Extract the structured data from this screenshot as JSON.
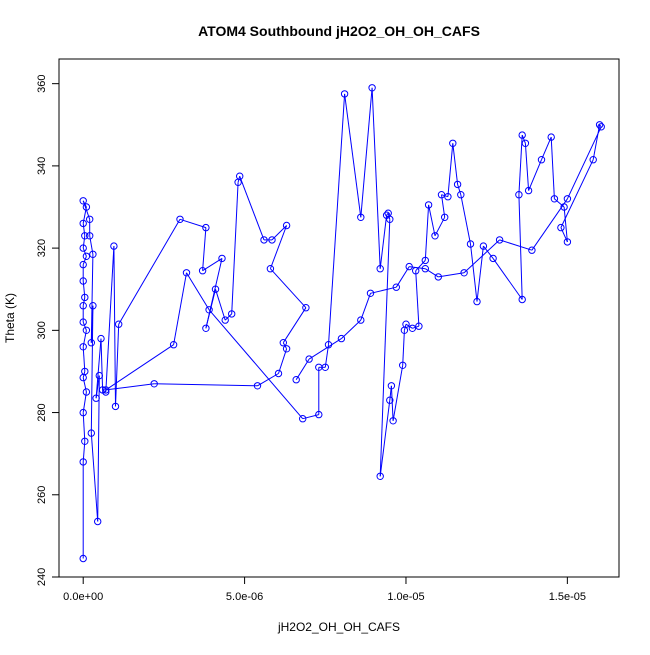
{
  "chart_data": {
    "type": "line",
    "title": "ATOM4 Southbound jH2O2_OH_OH_CAFS",
    "xlabel": "jH2O2_OH_OH_CAFS",
    "ylabel": "Theta (K)",
    "xlim": [
      -7.5e-07,
      1.66e-05
    ],
    "ylim": [
      240,
      366
    ],
    "xticks": [
      0,
      5e-06,
      1e-05,
      1.5e-05
    ],
    "xtick_labels": [
      "0.0e+00",
      "5.0e-06",
      "1.0e-05",
      "1.5e-05"
    ],
    "yticks": [
      240,
      260,
      280,
      300,
      320,
      340,
      360
    ],
    "ytick_labels": [
      "240",
      "260",
      "280",
      "300",
      "320",
      "340",
      "360"
    ],
    "grid": false,
    "legend": "none",
    "colors": {
      "series": "#0000ff",
      "axes": "#000000"
    },
    "markers": "open-circle",
    "series": [
      {
        "values": [
          [
            0.0,
            244.5
          ],
          [
            0.0,
            268.0
          ],
          [
            5e-08,
            273.0
          ],
          [
            0.0,
            280.0
          ],
          [
            1e-07,
            285.0
          ],
          [
            0.0,
            288.5
          ],
          [
            5e-08,
            290.0
          ],
          [
            0.0,
            296.0
          ],
          [
            1e-07,
            300.0
          ],
          [
            0.0,
            302.0
          ],
          [
            0.0,
            306.0
          ],
          [
            5e-08,
            308.0
          ],
          [
            0.0,
            312.0
          ],
          [
            0.0,
            316.0
          ],
          [
            1e-07,
            318.0
          ],
          [
            0.0,
            320.0
          ],
          [
            5e-08,
            323.0
          ],
          [
            0.0,
            326.0
          ],
          [
            1e-07,
            330.0
          ],
          [
            0.0,
            331.5
          ],
          [
            2e-07,
            327.0
          ],
          [
            2e-07,
            323.0
          ],
          [
            3e-07,
            318.5
          ],
          [
            2.5e-07,
            297.0
          ],
          [
            3e-07,
            306.0
          ],
          [
            2.5e-07,
            275.0
          ],
          [
            4.5e-07,
            253.5
          ],
          [
            5e-07,
            289.0
          ],
          [
            4e-07,
            283.5
          ],
          [
            5.5e-07,
            298.0
          ],
          [
            6e-07,
            285.5
          ],
          [
            7e-07,
            285.0
          ],
          [
            9.5e-07,
            320.5
          ],
          [
            1e-06,
            281.5
          ],
          [
            1.1e-06,
            301.5
          ],
          [
            3e-06,
            327.0
          ],
          [
            3.8e-06,
            325.0
          ],
          [
            3.7e-06,
            314.5
          ],
          [
            4.3e-06,
            317.5
          ],
          [
            3.8e-06,
            300.5
          ],
          [
            4.1e-06,
            310.0
          ],
          [
            4.4e-06,
            302.5
          ],
          [
            4.6e-06,
            304.0
          ],
          [
            4.8e-06,
            336.0
          ],
          [
            4.85e-06,
            337.5
          ],
          [
            5.6e-06,
            322.0
          ],
          [
            5.85e-06,
            322.0
          ],
          [
            6.3e-06,
            325.5
          ],
          [
            5.8e-06,
            315.0
          ],
          [
            6.9e-06,
            305.5
          ],
          [
            6.2e-06,
            297.0
          ],
          [
            6.3e-06,
            295.5
          ],
          [
            6.05e-06,
            289.5
          ],
          [
            5.4e-06,
            286.5
          ],
          [
            2.2e-06,
            287.0
          ],
          [
            7e-07,
            285.5
          ],
          [
            2.8e-06,
            296.5
          ],
          [
            3.2e-06,
            314.0
          ],
          [
            3.9e-06,
            305.0
          ],
          [
            6.8e-06,
            278.5
          ],
          [
            7.3e-06,
            279.5
          ],
          [
            7.3e-06,
            291.0
          ],
          [
            7.5e-06,
            291.0
          ],
          [
            7.6e-06,
            296.5
          ],
          [
            8.1e-06,
            357.5
          ],
          [
            8.6e-06,
            327.5
          ],
          [
            8.95e-06,
            359.0
          ],
          [
            9.2e-06,
            315.0
          ],
          [
            9.4e-06,
            328.0
          ],
          [
            9.45e-06,
            328.5
          ],
          [
            9.5e-06,
            327.0
          ],
          [
            9.2e-06,
            264.5
          ],
          [
            9.5e-06,
            283.0
          ],
          [
            9.55e-06,
            286.5
          ],
          [
            9.6e-06,
            278.0
          ],
          [
            9.9e-06,
            291.5
          ],
          [
            9.95e-06,
            300.0
          ],
          [
            1e-05,
            301.5
          ],
          [
            1.02e-05,
            300.5
          ],
          [
            1.04e-05,
            301.0
          ],
          [
            1.03e-05,
            314.5
          ],
          [
            1.06e-05,
            317.0
          ],
          [
            1.07e-05,
            330.5
          ],
          [
            1.09e-05,
            323.0
          ],
          [
            1.12e-05,
            327.5
          ],
          [
            1.11e-05,
            333.0
          ],
          [
            1.13e-05,
            332.5
          ],
          [
            1.145e-05,
            345.5
          ],
          [
            1.16e-05,
            335.5
          ],
          [
            1.17e-05,
            333.0
          ],
          [
            1.2e-05,
            321.0
          ],
          [
            1.22e-05,
            307.0
          ],
          [
            1.24e-05,
            320.5
          ],
          [
            1.27e-05,
            317.5
          ],
          [
            1.36e-05,
            307.5
          ],
          [
            1.35e-05,
            333.0
          ],
          [
            1.36e-05,
            347.5
          ],
          [
            1.37e-05,
            345.5
          ],
          [
            1.38e-05,
            334.0
          ],
          [
            1.42e-05,
            341.5
          ],
          [
            1.45e-05,
            347.0
          ],
          [
            1.46e-05,
            332.0
          ],
          [
            1.49e-05,
            330.0
          ],
          [
            1.5e-05,
            321.5
          ],
          [
            1.48e-05,
            325.0
          ],
          [
            1.58e-05,
            341.5
          ],
          [
            1.6e-05,
            350.0
          ],
          [
            1.605e-05,
            349.5
          ],
          [
            1.5e-05,
            332.0
          ],
          [
            1.39e-05,
            319.5
          ],
          [
            1.29e-05,
            322.0
          ],
          [
            1.18e-05,
            314.0
          ],
          [
            1.1e-05,
            313.0
          ],
          [
            1.06e-05,
            315.0
          ],
          [
            1.01e-05,
            315.5
          ],
          [
            9.7e-06,
            310.5
          ],
          [
            8.9e-06,
            309.0
          ],
          [
            8.6e-06,
            302.5
          ],
          [
            8e-06,
            298.0
          ],
          [
            7e-06,
            293.0
          ],
          [
            6.6e-06,
            288.0
          ]
        ]
      }
    ]
  }
}
